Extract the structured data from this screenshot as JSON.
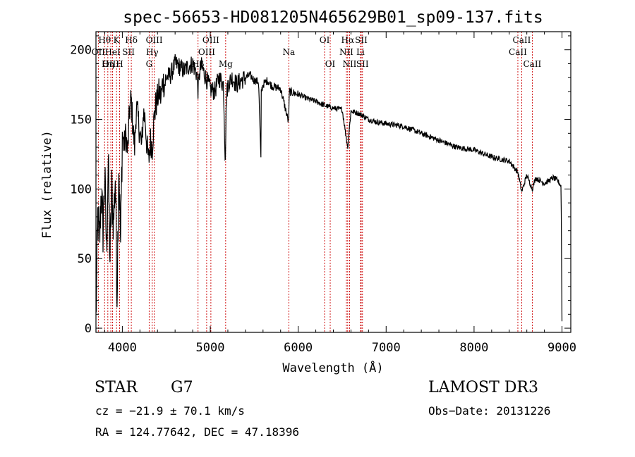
{
  "chart_data": {
    "type": "line",
    "title": "spec-56653-HD081205N465629B01_sp09-137.fits",
    "xlabel": "Wavelength (Å)",
    "ylabel": "Flux (relative)",
    "xlim": [
      3700,
      9100
    ],
    "ylim": [
      -3,
      213
    ],
    "xticks": [
      4000,
      5000,
      6000,
      7000,
      8000,
      9000
    ],
    "yticks": [
      0,
      50,
      100,
      150,
      200
    ],
    "series": [
      {
        "name": "spectrum",
        "x": [
          3700,
          3720,
          3740,
          3760,
          3780,
          3800,
          3820,
          3840,
          3860,
          3880,
          3900,
          3920,
          3940,
          3960,
          3980,
          4000,
          4020,
          4040,
          4060,
          4080,
          4100,
          4120,
          4140,
          4160,
          4180,
          4200,
          4220,
          4240,
          4260,
          4280,
          4300,
          4320,
          4340,
          4360,
          4380,
          4400,
          4420,
          4440,
          4460,
          4480,
          4500,
          4550,
          4600,
          4650,
          4700,
          4750,
          4800,
          4850,
          4861,
          4880,
          4900,
          4950,
          5000,
          5050,
          5100,
          5150,
          5170,
          5183,
          5200,
          5250,
          5300,
          5350,
          5400,
          5450,
          5500,
          5550,
          5577,
          5580,
          5600,
          5650,
          5700,
          5800,
          5890,
          5900,
          6000,
          6100,
          6200,
          6300,
          6400,
          6500,
          6563,
          6600,
          6700,
          6800,
          6900,
          7000,
          7200,
          7400,
          7600,
          7800,
          8000,
          8200,
          8400,
          8498,
          8542,
          8600,
          8662,
          8700,
          8800,
          8900,
          8950,
          8990,
          9000
        ],
        "y": [
          5,
          80,
          60,
          100,
          70,
          110,
          55,
          120,
          50,
          100,
          75,
          110,
          25,
          120,
          60,
          140,
          130,
          140,
          125,
          155,
          165,
          145,
          130,
          160,
          150,
          140,
          130,
          155,
          150,
          130,
          120,
          135,
          130,
          150,
          160,
          165,
          170,
          165,
          178,
          175,
          180,
          182,
          190,
          188,
          185,
          188,
          190,
          182,
          170,
          185,
          188,
          180,
          172,
          170,
          180,
          175,
          120,
          165,
          175,
          180,
          175,
          178,
          180,
          182,
          178,
          177,
          118,
          170,
          175,
          178,
          174,
          172,
          148,
          170,
          168,
          165,
          163,
          160,
          158,
          157,
          130,
          156,
          154,
          150,
          148,
          147,
          145,
          140,
          135,
          130,
          128,
          123,
          120,
          112,
          98,
          110,
          100,
          108,
          104,
          108,
          106,
          102,
          5
        ]
      }
    ],
    "lines": [
      {
        "label": "Hθ",
        "x": 3798,
        "row": 1
      },
      {
        "label": "OII",
        "x": 3727,
        "row": 2
      },
      {
        "label": "OIII",
        "x": 3869,
        "row": 3
      },
      {
        "label": "K",
        "x": 3934,
        "row": 1
      },
      {
        "label": "HeI",
        "x": 3889,
        "row": 2
      },
      {
        "label": "Hη",
        "x": 3835,
        "row": 3
      },
      {
        "label": "H",
        "x": 3969,
        "row": 3
      },
      {
        "label": "SII",
        "x": 4070,
        "row": 2
      },
      {
        "label": "Hδ",
        "x": 4102,
        "row": 1
      },
      {
        "label": "OIII",
        "x": 4363,
        "row": 1
      },
      {
        "label": "Hγ",
        "x": 4340,
        "row": 2
      },
      {
        "label": "G",
        "x": 4305,
        "row": 3
      },
      {
        "label": "Hβ",
        "x": 4861,
        "row": 3
      },
      {
        "label": "OIII",
        "x": 5007,
        "row": 1
      },
      {
        "label": "OIII",
        "x": 4959,
        "row": 2
      },
      {
        "label": "Mg",
        "x": 5175,
        "row": 3
      },
      {
        "label": "Na",
        "x": 5893,
        "row": 2
      },
      {
        "label": "OI",
        "x": 6300,
        "row": 1
      },
      {
        "label": "OI",
        "x": 6364,
        "row": 3
      },
      {
        "label": "Hα",
        "x": 6563,
        "row": 1
      },
      {
        "label": "NII",
        "x": 6548,
        "row": 2
      },
      {
        "label": "NII",
        "x": 6584,
        "row": 3
      },
      {
        "label": "SII",
        "x": 6717,
        "row": 1
      },
      {
        "label": "Li",
        "x": 6708,
        "row": 2
      },
      {
        "label": "SII",
        "x": 6731,
        "row": 3
      },
      {
        "label": "CaII",
        "x": 8542,
        "row": 1
      },
      {
        "label": "CaII",
        "x": 8498,
        "row": 2
      },
      {
        "label": "CaII",
        "x": 8662,
        "row": 3
      }
    ]
  },
  "info": {
    "object_class": "STAR",
    "subclass": "G7",
    "survey": "LAMOST DR3",
    "redshift": "cz = −21.9 ± 70.1 km/s",
    "obs_date": "Obs−Date: 20131226",
    "coords": "RA = 124.77642, DEC =  47.18396"
  },
  "colors": {
    "spectrum": "#000000",
    "line_marker": "#cc0000",
    "axes": "#000000"
  }
}
